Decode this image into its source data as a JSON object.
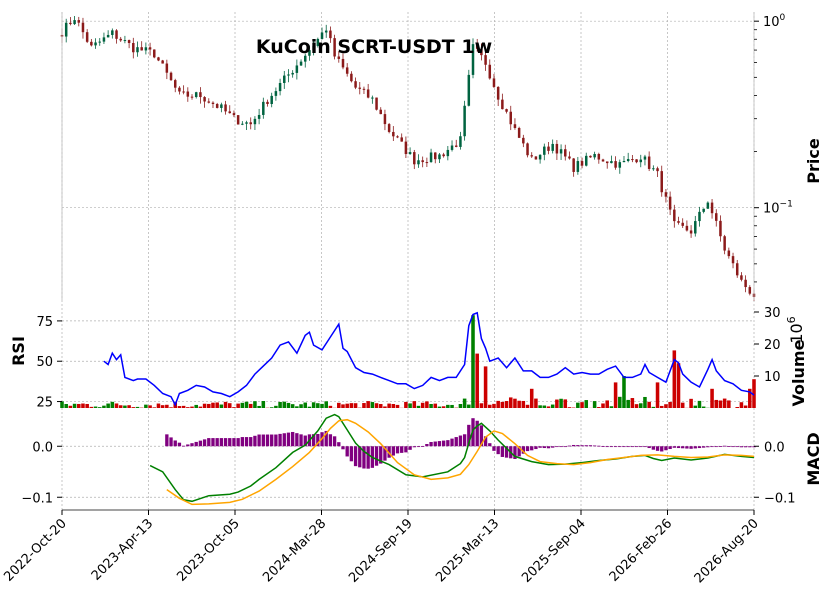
{
  "chart_data": [
    {
      "type": "candlestick",
      "panel": "price",
      "title": "KuCoin SCRT-USDT 1w",
      "ylabel": "Price",
      "yscale": "log",
      "ylim": [
        0.032,
        1.12
      ],
      "y_ticks": [
        {
          "value": 1.0,
          "label": "10^0"
        },
        {
          "value": 0.1,
          "label": "10^-1"
        }
      ],
      "x_ticks": [
        "2022-Oct-20",
        "2023-Apr-13",
        "2023-Oct-05",
        "2024-Mar-28",
        "2024-Sep-19",
        "2025-Mar-13",
        "2025-Sep-04",
        "2026-Feb-26",
        "2026-Aug-20"
      ],
      "up_color": "#006340",
      "down_color": "#8b1a1a",
      "price_path": [
        {
          "week": 0,
          "price": 0.88
        },
        {
          "week": 3,
          "price": 1.05
        },
        {
          "week": 7,
          "price": 0.72
        },
        {
          "week": 12,
          "price": 0.86
        },
        {
          "week": 17,
          "price": 0.72
        },
        {
          "week": 22,
          "price": 0.67
        },
        {
          "week": 28,
          "price": 0.4
        },
        {
          "week": 33,
          "price": 0.4
        },
        {
          "week": 38,
          "price": 0.34
        },
        {
          "week": 41,
          "price": 0.3
        },
        {
          "week": 45,
          "price": 0.28
        },
        {
          "week": 49,
          "price": 0.38
        },
        {
          "week": 55,
          "price": 0.55
        },
        {
          "week": 61,
          "price": 0.8
        },
        {
          "week": 63,
          "price": 0.92
        },
        {
          "week": 65,
          "price": 0.65
        },
        {
          "week": 70,
          "price": 0.44
        },
        {
          "week": 74,
          "price": 0.38
        },
        {
          "week": 78,
          "price": 0.26
        },
        {
          "week": 84,
          "price": 0.18
        },
        {
          "week": 90,
          "price": 0.19
        },
        {
          "week": 95,
          "price": 0.23
        },
        {
          "week": 98,
          "price": 0.72
        },
        {
          "week": 101,
          "price": 0.6
        },
        {
          "week": 104,
          "price": 0.4
        },
        {
          "week": 108,
          "price": 0.26
        },
        {
          "week": 112,
          "price": 0.18
        },
        {
          "week": 117,
          "price": 0.22
        },
        {
          "week": 122,
          "price": 0.165
        },
        {
          "week": 127,
          "price": 0.19
        },
        {
          "week": 133,
          "price": 0.17
        },
        {
          "week": 138,
          "price": 0.19
        },
        {
          "week": 142,
          "price": 0.15
        },
        {
          "week": 146,
          "price": 0.08
        },
        {
          "week": 150,
          "price": 0.075
        },
        {
          "week": 154,
          "price": 0.11
        },
        {
          "week": 158,
          "price": 0.06
        },
        {
          "week": 162,
          "price": 0.04
        },
        {
          "week": 165,
          "price": 0.034
        }
      ],
      "weeks": 166
    },
    {
      "type": "bar",
      "panel": "volume",
      "ylabel": "Volume",
      "y_multiplier": "10^6",
      "ylim": [
        0,
        30
      ],
      "y_ticks": [
        10,
        20,
        30
      ],
      "spikes_millions": [
        {
          "week": 98,
          "value": 29
        },
        {
          "week": 101,
          "value": 13
        },
        {
          "week": 99,
          "value": 17
        },
        {
          "week": 146,
          "value": 18
        },
        {
          "week": 147,
          "value": 14
        },
        {
          "week": 142,
          "value": 8
        },
        {
          "week": 132,
          "value": 8
        },
        {
          "week": 134,
          "value": 10
        },
        {
          "week": 155,
          "value": 6
        },
        {
          "week": 165,
          "value": 9
        },
        {
          "week": 164,
          "value": 6
        },
        {
          "week": 112,
          "value": 6
        }
      ]
    },
    {
      "type": "line",
      "panel": "rsi",
      "ylabel": "RSI",
      "ylim": [
        21,
        83
      ],
      "y_ticks": [
        25,
        50,
        75
      ],
      "color": "#0000ff",
      "points": [
        {
          "week": 10,
          "value": 50
        },
        {
          "week": 11,
          "value": 48
        },
        {
          "week": 12,
          "value": 55
        },
        {
          "week": 13,
          "value": 51
        },
        {
          "week": 14,
          "value": 54
        },
        {
          "week": 15,
          "value": 40
        },
        {
          "week": 17,
          "value": 38
        },
        {
          "week": 18,
          "value": 39
        },
        {
          "week": 20,
          "value": 39
        },
        {
          "week": 22,
          "value": 35
        },
        {
          "week": 24,
          "value": 30
        },
        {
          "week": 26,
          "value": 28
        },
        {
          "week": 27,
          "value": 23
        },
        {
          "week": 28,
          "value": 30
        },
        {
          "week": 30,
          "value": 32
        },
        {
          "week": 32,
          "value": 35
        },
        {
          "week": 34,
          "value": 34
        },
        {
          "week": 36,
          "value": 31
        },
        {
          "week": 38,
          "value": 30
        },
        {
          "week": 40,
          "value": 28
        },
        {
          "week": 42,
          "value": 31
        },
        {
          "week": 44,
          "value": 35
        },
        {
          "week": 46,
          "value": 42
        },
        {
          "week": 48,
          "value": 47
        },
        {
          "week": 50,
          "value": 52
        },
        {
          "week": 52,
          "value": 60
        },
        {
          "week": 54,
          "value": 62
        },
        {
          "week": 56,
          "value": 55
        },
        {
          "week": 58,
          "value": 66
        },
        {
          "week": 59,
          "value": 68
        },
        {
          "week": 60,
          "value": 60
        },
        {
          "week": 62,
          "value": 57
        },
        {
          "week": 64,
          "value": 65
        },
        {
          "week": 66,
          "value": 73
        },
        {
          "week": 67,
          "value": 58
        },
        {
          "week": 68,
          "value": 56
        },
        {
          "week": 70,
          "value": 46
        },
        {
          "week": 72,
          "value": 43
        },
        {
          "week": 74,
          "value": 42
        },
        {
          "week": 76,
          "value": 40
        },
        {
          "week": 78,
          "value": 38
        },
        {
          "week": 80,
          "value": 36
        },
        {
          "week": 82,
          "value": 36
        },
        {
          "week": 84,
          "value": 33
        },
        {
          "week": 86,
          "value": 35
        },
        {
          "week": 88,
          "value": 40
        },
        {
          "week": 90,
          "value": 38
        },
        {
          "week": 92,
          "value": 40
        },
        {
          "week": 94,
          "value": 40
        },
        {
          "week": 96,
          "value": 48
        },
        {
          "week": 97,
          "value": 72
        },
        {
          "week": 98,
          "value": 79
        },
        {
          "week": 99,
          "value": 80
        },
        {
          "week": 100,
          "value": 64
        },
        {
          "week": 101,
          "value": 58
        },
        {
          "week": 102,
          "value": 50
        },
        {
          "week": 104,
          "value": 52
        },
        {
          "week": 106,
          "value": 46
        },
        {
          "week": 108,
          "value": 52
        },
        {
          "week": 110,
          "value": 44
        },
        {
          "week": 112,
          "value": 44
        },
        {
          "week": 114,
          "value": 40
        },
        {
          "week": 116,
          "value": 40
        },
        {
          "week": 118,
          "value": 42
        },
        {
          "week": 120,
          "value": 46
        },
        {
          "week": 122,
          "value": 42
        },
        {
          "week": 124,
          "value": 43
        },
        {
          "week": 126,
          "value": 42
        },
        {
          "week": 128,
          "value": 42
        },
        {
          "week": 130,
          "value": 45
        },
        {
          "week": 132,
          "value": 47
        },
        {
          "week": 134,
          "value": 40
        },
        {
          "week": 136,
          "value": 40
        },
        {
          "week": 138,
          "value": 42
        },
        {
          "week": 139,
          "value": 48
        },
        {
          "week": 140,
          "value": 43
        },
        {
          "week": 142,
          "value": 40
        },
        {
          "week": 144,
          "value": 37
        },
        {
          "week": 146,
          "value": 51
        },
        {
          "week": 147,
          "value": 49
        },
        {
          "week": 148,
          "value": 42
        },
        {
          "week": 150,
          "value": 37
        },
        {
          "week": 152,
          "value": 34
        },
        {
          "week": 154,
          "value": 45
        },
        {
          "week": 155,
          "value": 51
        },
        {
          "week": 156,
          "value": 44
        },
        {
          "week": 158,
          "value": 38
        },
        {
          "week": 160,
          "value": 36
        },
        {
          "week": 162,
          "value": 32
        },
        {
          "week": 164,
          "value": 31
        },
        {
          "week": 165,
          "value": 29
        }
      ]
    },
    {
      "type": "line",
      "panel": "macd",
      "ylabel": "MACD",
      "ylim": [
        -0.125,
        0.075
      ],
      "y_ticks_left": [
        0.0,
        -0.1
      ],
      "y_ticks_right": [
        0.0,
        -0.1
      ],
      "series": [
        {
          "color": "#008000",
          "points": [
            {
              "week": 21,
              "value": -0.038
            },
            {
              "week": 24,
              "value": -0.05
            },
            {
              "week": 27,
              "value": -0.085
            },
            {
              "week": 29,
              "value": -0.105
            },
            {
              "week": 31,
              "value": -0.108
            },
            {
              "week": 35,
              "value": -0.097
            },
            {
              "week": 40,
              "value": -0.094
            },
            {
              "week": 42,
              "value": -0.09
            },
            {
              "week": 45,
              "value": -0.078
            },
            {
              "week": 47,
              "value": -0.065
            },
            {
              "week": 51,
              "value": -0.042
            },
            {
              "week": 55,
              "value": -0.012
            },
            {
              "week": 58,
              "value": 0.002
            },
            {
              "week": 61,
              "value": 0.03
            },
            {
              "week": 63,
              "value": 0.055
            },
            {
              "week": 65,
              "value": 0.062
            },
            {
              "week": 66,
              "value": 0.058
            },
            {
              "week": 68,
              "value": 0.032
            },
            {
              "week": 70,
              "value": 0.006
            },
            {
              "week": 72,
              "value": -0.01
            },
            {
              "week": 74,
              "value": -0.022
            },
            {
              "week": 78,
              "value": -0.036
            },
            {
              "week": 82,
              "value": -0.056
            },
            {
              "week": 86,
              "value": -0.06
            },
            {
              "week": 92,
              "value": -0.05
            },
            {
              "week": 95,
              "value": -0.034
            },
            {
              "week": 96,
              "value": -0.022
            },
            {
              "week": 97,
              "value": 0.006
            },
            {
              "week": 98,
              "value": 0.032
            },
            {
              "week": 99,
              "value": 0.04
            },
            {
              "week": 100,
              "value": 0.045
            },
            {
              "week": 102,
              "value": 0.03
            },
            {
              "week": 104,
              "value": 0.012
            },
            {
              "week": 108,
              "value": -0.02
            },
            {
              "week": 112,
              "value": -0.03
            },
            {
              "week": 116,
              "value": -0.036
            },
            {
              "week": 120,
              "value": -0.035
            },
            {
              "week": 124,
              "value": -0.032
            },
            {
              "week": 128,
              "value": -0.028
            },
            {
              "week": 132,
              "value": -0.025
            },
            {
              "week": 136,
              "value": -0.02
            },
            {
              "week": 139,
              "value": -0.018
            },
            {
              "week": 141,
              "value": -0.024
            },
            {
              "week": 143,
              "value": -0.028
            },
            {
              "week": 146,
              "value": -0.023
            },
            {
              "week": 150,
              "value": -0.027
            },
            {
              "week": 154,
              "value": -0.023
            },
            {
              "week": 158,
              "value": -0.016
            },
            {
              "week": 162,
              "value": -0.02
            },
            {
              "week": 165,
              "value": -0.022
            }
          ]
        },
        {
          "color": "#ffa500",
          "points": [
            {
              "week": 25,
              "value": -0.085
            },
            {
              "week": 28,
              "value": -0.102
            },
            {
              "week": 31,
              "value": -0.114
            },
            {
              "week": 35,
              "value": -0.113
            },
            {
              "week": 40,
              "value": -0.11
            },
            {
              "week": 43,
              "value": -0.104
            },
            {
              "week": 47,
              "value": -0.088
            },
            {
              "week": 51,
              "value": -0.065
            },
            {
              "week": 55,
              "value": -0.04
            },
            {
              "week": 59,
              "value": -0.012
            },
            {
              "week": 62,
              "value": 0.015
            },
            {
              "week": 64,
              "value": 0.035
            },
            {
              "week": 66,
              "value": 0.05
            },
            {
              "week": 68,
              "value": 0.052
            },
            {
              "week": 70,
              "value": 0.045
            },
            {
              "week": 73,
              "value": 0.028
            },
            {
              "week": 76,
              "value": 0.005
            },
            {
              "week": 80,
              "value": -0.032
            },
            {
              "week": 84,
              "value": -0.056
            },
            {
              "week": 88,
              "value": -0.065
            },
            {
              "week": 92,
              "value": -0.062
            },
            {
              "week": 95,
              "value": -0.055
            },
            {
              "week": 97,
              "value": -0.036
            },
            {
              "week": 99,
              "value": -0.01
            },
            {
              "week": 101,
              "value": 0.018
            },
            {
              "week": 103,
              "value": 0.03
            },
            {
              "week": 105,
              "value": 0.025
            },
            {
              "week": 108,
              "value": 0.005
            },
            {
              "week": 111,
              "value": -0.018
            },
            {
              "week": 114,
              "value": -0.03
            },
            {
              "week": 118,
              "value": -0.034
            },
            {
              "week": 122,
              "value": -0.036
            },
            {
              "week": 126,
              "value": -0.032
            },
            {
              "week": 130,
              "value": -0.026
            },
            {
              "week": 134,
              "value": -0.022
            },
            {
              "week": 138,
              "value": -0.018
            },
            {
              "week": 142,
              "value": -0.017
            },
            {
              "week": 146,
              "value": -0.02
            },
            {
              "week": 150,
              "value": -0.022
            },
            {
              "week": 154,
              "value": -0.021
            },
            {
              "week": 158,
              "value": -0.017
            },
            {
              "week": 162,
              "value": -0.018
            },
            {
              "week": 165,
              "value": -0.02
            }
          ]
        }
      ],
      "histogram_color": "#800080"
    }
  ],
  "colors": {
    "grid": "#b0b0b0",
    "rsi_line": "#0000ff",
    "volume_up": "#008000",
    "volume_down": "#cc0000"
  }
}
